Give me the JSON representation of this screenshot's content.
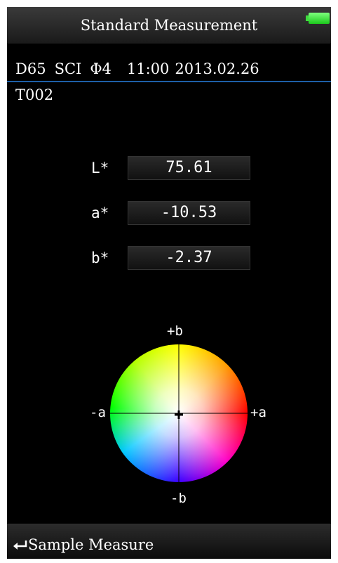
{
  "header": {
    "title": "Standard Measurement"
  },
  "status": {
    "illuminant": "D65",
    "mode": "SCI",
    "aperture": "Φ4",
    "time": "11:00",
    "date": "2013.02.26"
  },
  "sample": "T002",
  "fields": [
    {
      "label": "L*",
      "value": "75.61"
    },
    {
      "label": "a*",
      "value": "-10.53"
    },
    {
      "label": "b*",
      "value": "-2.37"
    }
  ],
  "wheel": {
    "top": "+b",
    "left": "-a",
    "right": "+a",
    "bottom": "-b"
  },
  "footer": {
    "action": "Sample Measure"
  }
}
